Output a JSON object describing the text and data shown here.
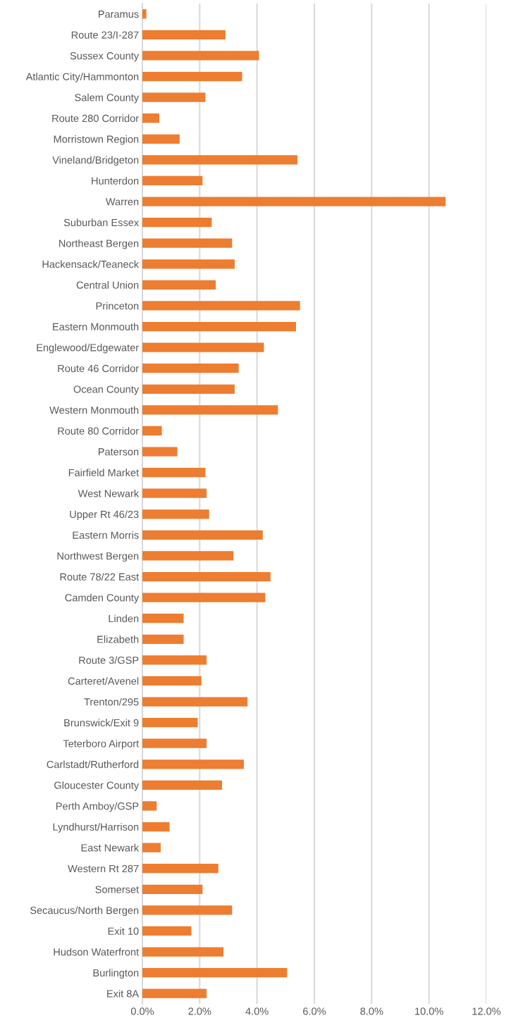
{
  "chart_data": {
    "type": "bar",
    "orientation": "horizontal",
    "color": "#ed7d31",
    "categories": [
      "Paramus",
      "Route 23/I-287",
      "Sussex County",
      "Atlantic City/Hammonton",
      "Salem County",
      "Route 280 Corridor",
      "Morristown Region",
      "Vineland/Bridgeton",
      "Hunterdon",
      "Warren",
      "Suburban Essex",
      "Northeast Bergen",
      "Hackensack/Teaneck",
      "Central Union",
      "Princeton",
      "Eastern Monmouth",
      "Englewood/Edgewater",
      "Route 46 Corridor",
      "Ocean County",
      "Western Monmouth",
      "Route 80 Corridor",
      "Paterson",
      "Fairfield Market",
      "West Newark",
      "Upper Rt 46/23",
      "Eastern Morris",
      "Northwest Bergen",
      "Route 78/22 East",
      "Camden County",
      "Linden",
      "Elizabeth",
      "Route 3/GSP",
      "Carteret/Avenel",
      "Trenton/295",
      "Brunswick/Exit 9",
      "Teterboro Airport",
      "Carlstadt/Rutherford",
      "Gloucester County",
      "Perth Amboy/GSP",
      "Lyndhurst/Harrison",
      "East Newark",
      "Western Rt 287",
      "Somerset",
      "Secaucus/North Bergen",
      "Exit 10",
      "Hudson Waterfront",
      "Burlington",
      "Exit 8A"
    ],
    "values": [
      0.14,
      2.9,
      4.07,
      3.48,
      2.2,
      0.59,
      1.3,
      5.41,
      2.1,
      10.58,
      2.42,
      3.13,
      3.22,
      2.56,
      5.5,
      5.36,
      4.24,
      3.36,
      3.22,
      4.73,
      0.68,
      1.22,
      2.2,
      2.24,
      2.33,
      4.2,
      3.18,
      4.47,
      4.29,
      1.44,
      1.44,
      2.24,
      2.06,
      3.67,
      1.93,
      2.24,
      3.54,
      2.78,
      0.5,
      0.95,
      0.64,
      2.65,
      2.1,
      3.13,
      1.71,
      2.83,
      5.05,
      2.24
    ],
    "xlim": [
      0,
      12
    ],
    "xticks": [
      {
        "value": 0,
        "label": "0.0%"
      },
      {
        "value": 2,
        "label": "2.0%"
      },
      {
        "value": 4,
        "label": "4.0%"
      },
      {
        "value": 6,
        "label": "6.0%"
      },
      {
        "value": 8,
        "label": "8.0%"
      },
      {
        "value": 10,
        "label": "10.0%"
      },
      {
        "value": 12,
        "label": "12.0%"
      }
    ],
    "grid": "x",
    "legend": false
  }
}
